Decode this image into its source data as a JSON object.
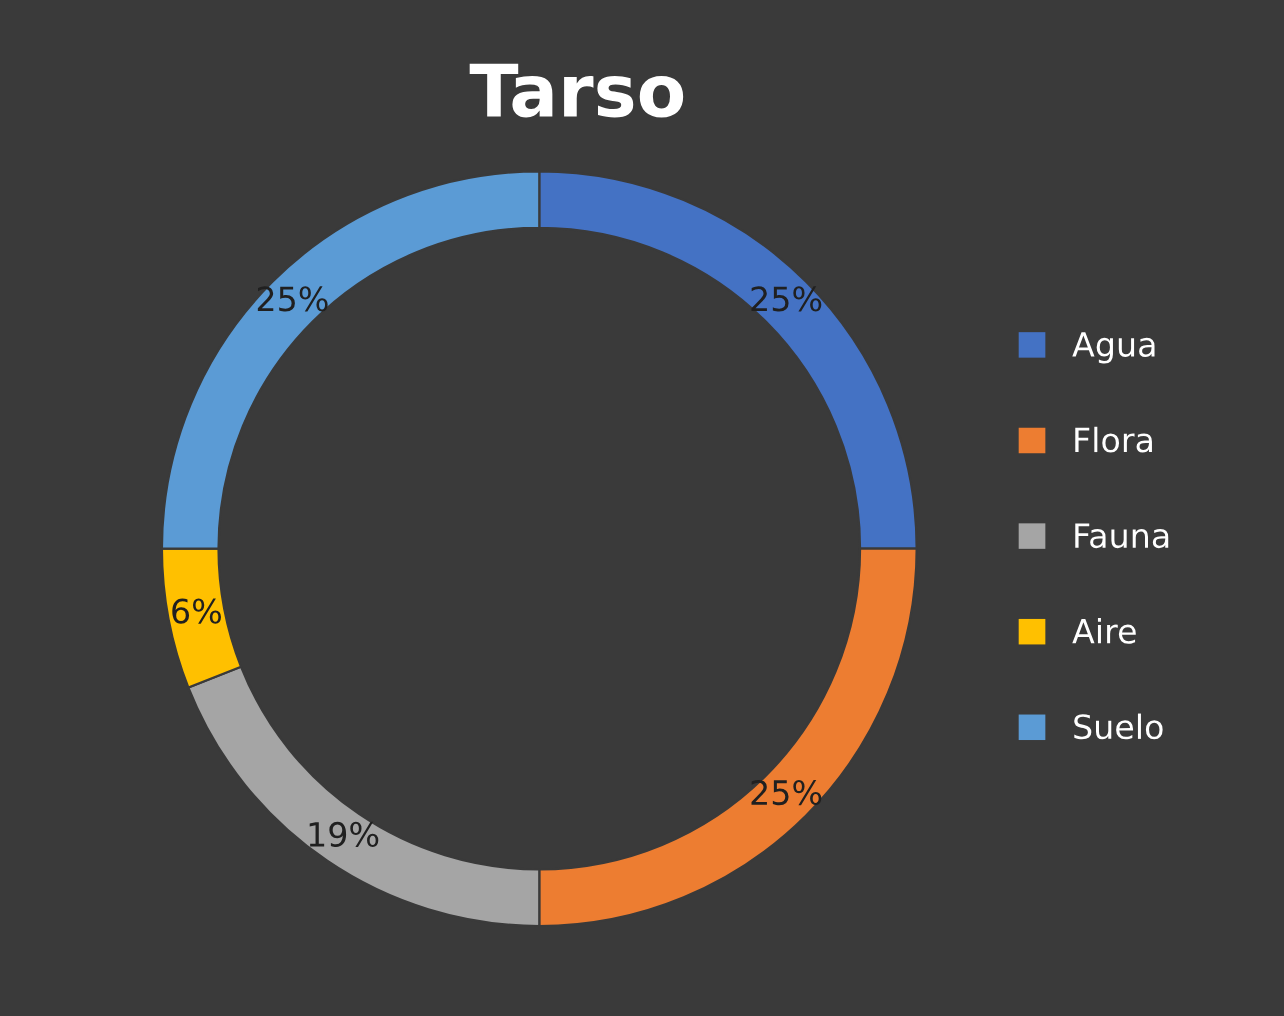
{
  "chart_data": {
    "type": "donut",
    "title": "Tarso",
    "categories": [
      "Agua",
      "Flora",
      "Fauna",
      "Aire",
      "Suelo"
    ],
    "values": [
      25,
      25,
      19,
      6,
      25
    ],
    "colors": [
      "#4472c4",
      "#ed7d31",
      "#a5a5a5",
      "#ffc000",
      "#5b9bd5"
    ],
    "value_labels": [
      "25%",
      "25%",
      "19%",
      "6%",
      "25%"
    ],
    "legend": "right"
  }
}
